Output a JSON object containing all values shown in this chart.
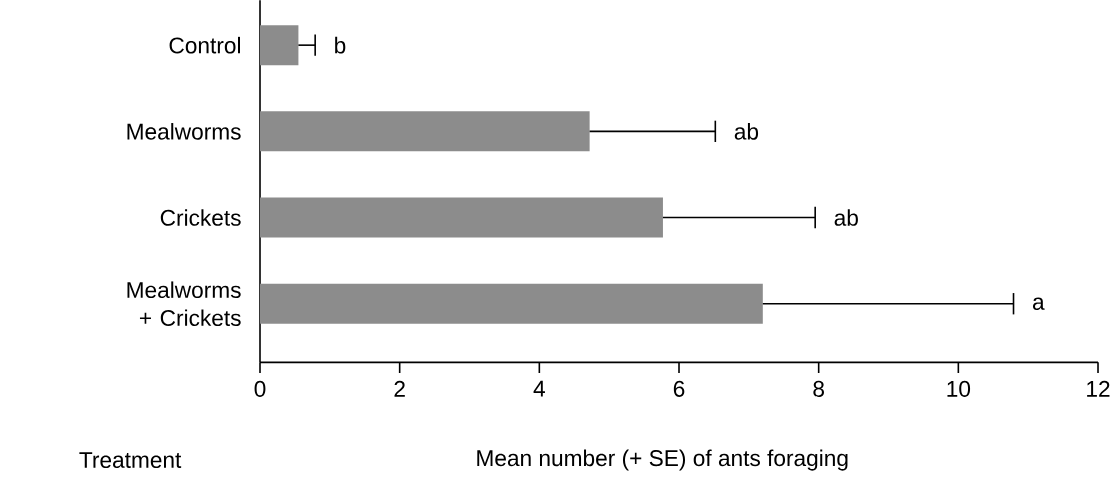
{
  "chart_data": {
    "type": "bar",
    "orientation": "horizontal",
    "categories": [
      "Control",
      "Mealworms",
      "Crickets",
      "Mealworms + Crickets"
    ],
    "values": [
      0.55,
      4.72,
      5.77,
      7.2
    ],
    "errors": [
      0.24,
      1.8,
      2.18,
      3.59
    ],
    "color": "#8c8c8c",
    "xlim": [
      0,
      12
    ],
    "xticks": [
      0,
      2,
      4,
      6,
      8,
      10,
      12
    ],
    "xlabel": "Mean number (+ SE) of ants foraging",
    "ylabel": "Treatment",
    "annotations": [
      {
        "text": "b",
        "x": 0.79,
        "y": "Control"
      },
      {
        "text": "ab",
        "x": 6.52,
        "y": "Mealworms"
      },
      {
        "text": "ab",
        "x": 7.95,
        "y": "Crickets"
      },
      {
        "text": "a",
        "x": 10.79,
        "y": "Mealworms + Crickets"
      }
    ]
  }
}
